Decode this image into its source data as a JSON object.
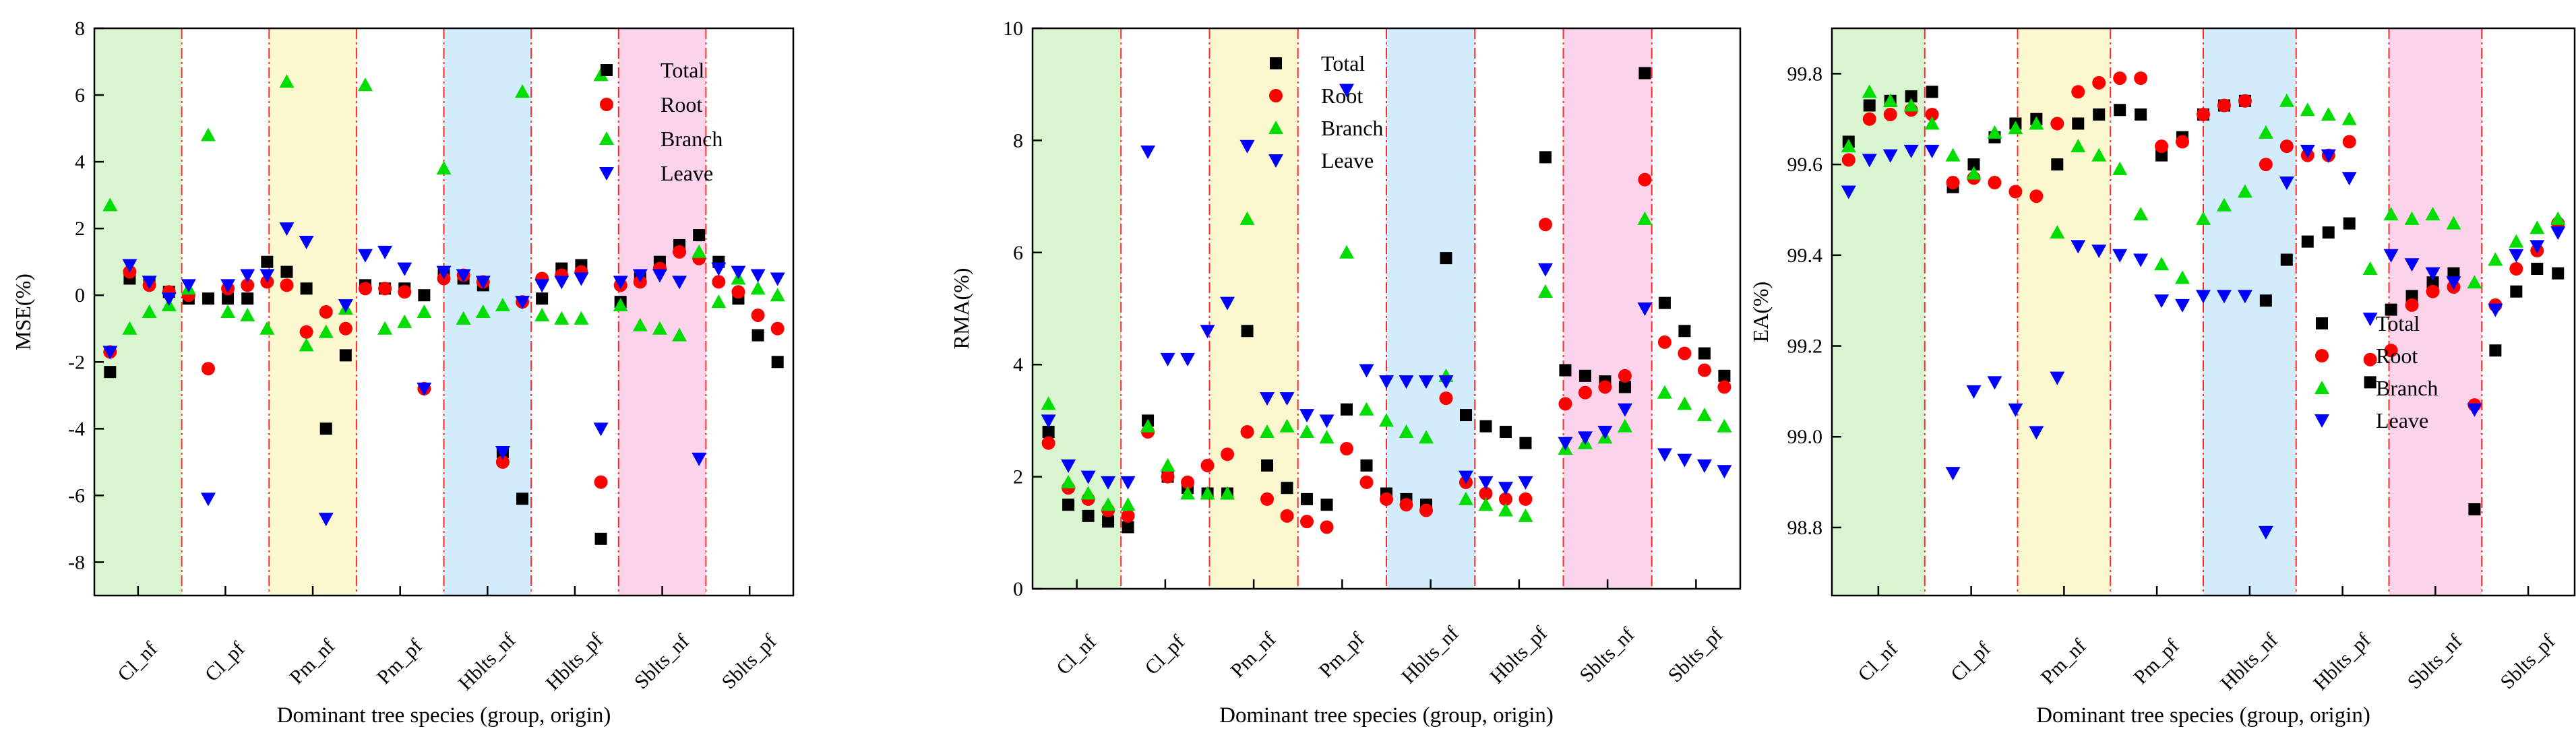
{
  "figure": {
    "categories": [
      "Cl_nf",
      "Cl_pf",
      "Pm_nf",
      "Pm_pf",
      "Hblts_nf",
      "Hblts_pf",
      "Sblts_nf",
      "Sblts_pf"
    ],
    "shaded_groups": [
      {
        "index": 0,
        "color": "#d8f5d0"
      },
      {
        "index": 2,
        "color": "#fbf7cf"
      },
      {
        "index": 4,
        "color": "#d3ecfb"
      },
      {
        "index": 6,
        "color": "#fbd3ea"
      }
    ],
    "series_style": [
      {
        "name": "Total",
        "marker": "square",
        "color": "#000000"
      },
      {
        "name": "Root",
        "marker": "circle",
        "color": "#ff0000"
      },
      {
        "name": "Branch",
        "marker": "triangle-up",
        "color": "#00dd00"
      },
      {
        "name": "Leave",
        "marker": "triangle-down",
        "color": "#0000ff"
      }
    ]
  },
  "chart_data": [
    {
      "type": "scatter",
      "ylabel": "MSE(%)",
      "xlabel": "Dominant tree species (group, origin)",
      "ylim": [
        -9,
        8
      ],
      "yticks": [
        -8,
        -6,
        -4,
        -2,
        0,
        2,
        4,
        6,
        8
      ],
      "ytick_labels": [
        "-8",
        "-6",
        "-4",
        "-2",
        "0",
        "2",
        "4",
        "6",
        "8"
      ],
      "legend_position": "top-right",
      "series": [
        {
          "name": "Total",
          "values": [
            -2.3,
            0.5,
            0.4,
            0.1,
            -0.1,
            -0.1,
            -0.1,
            -0.1,
            1.0,
            0.7,
            0.2,
            -4.0,
            -1.8,
            0.3,
            0.2,
            0.2,
            0.0,
            0.6,
            0.5,
            0.3,
            -4.7,
            -6.1,
            -0.1,
            0.8,
            0.9,
            -7.3,
            -0.2,
            0.5,
            1.0,
            1.5,
            1.8,
            1.0,
            -0.1,
            -1.2,
            -2.0
          ]
        },
        {
          "name": "Root",
          "values": [
            -1.7,
            0.7,
            0.3,
            0.1,
            0.0,
            -2.2,
            0.2,
            0.3,
            0.4,
            0.3,
            -1.1,
            -0.5,
            -1.0,
            0.2,
            0.2,
            0.1,
            -2.8,
            0.5,
            0.6,
            0.4,
            -5.0,
            -0.2,
            0.5,
            0.6,
            0.7,
            -5.6,
            0.3,
            0.4,
            0.8,
            1.3,
            1.1,
            0.4,
            0.1,
            -0.6,
            -1.0
          ]
        },
        {
          "name": "Branch",
          "values": [
            2.7,
            -1.0,
            -0.5,
            -0.3,
            0.2,
            4.8,
            -0.5,
            -0.6,
            -1.0,
            6.4,
            -1.5,
            -1.1,
            -0.4,
            6.3,
            -1.0,
            -0.8,
            -0.5,
            3.8,
            -0.7,
            -0.5,
            -0.3,
            6.1,
            -0.6,
            -0.7,
            -0.7,
            6.6,
            -0.3,
            -0.9,
            -1.0,
            -1.2,
            1.3,
            -0.2,
            0.5,
            0.2,
            0.0
          ]
        },
        {
          "name": "Leave",
          "values": [
            -1.7,
            0.9,
            0.4,
            -0.1,
            0.3,
            -6.1,
            0.3,
            0.6,
            0.6,
            2.0,
            1.6,
            -6.7,
            -0.3,
            1.2,
            1.3,
            0.8,
            -2.8,
            0.7,
            0.6,
            0.4,
            -4.7,
            -0.2,
            0.3,
            0.4,
            0.5,
            -4.0,
            0.4,
            0.6,
            0.6,
            0.4,
            -4.9,
            0.8,
            0.7,
            0.6,
            0.5
          ]
        }
      ]
    },
    {
      "type": "scatter",
      "ylabel": "RMA(%)",
      "xlabel": "Dominant tree species (group, origin)",
      "ylim": [
        0,
        10
      ],
      "yticks": [
        0,
        2,
        4,
        6,
        8,
        10
      ],
      "ytick_labels": [
        "0",
        "2",
        "4",
        "6",
        "8",
        "10"
      ],
      "legend_position": "top-right",
      "series": [
        {
          "name": "Total",
          "values": [
            2.8,
            1.5,
            1.3,
            1.2,
            1.1,
            3.0,
            2.0,
            1.8,
            1.7,
            1.7,
            4.6,
            2.2,
            1.8,
            1.6,
            1.5,
            3.2,
            2.2,
            1.7,
            1.6,
            1.5,
            5.9,
            3.1,
            2.9,
            2.8,
            2.6,
            7.7,
            3.9,
            3.8,
            3.7,
            3.6,
            9.2,
            5.1,
            4.6,
            4.2,
            3.8
          ]
        },
        {
          "name": "Root",
          "values": [
            2.6,
            1.8,
            1.6,
            1.4,
            1.3,
            2.8,
            2.0,
            1.9,
            2.2,
            2.4,
            2.8,
            1.6,
            1.3,
            1.2,
            1.1,
            2.5,
            1.9,
            1.6,
            1.5,
            1.4,
            3.4,
            1.9,
            1.7,
            1.6,
            1.6,
            6.5,
            3.3,
            3.5,
            3.6,
            3.8,
            7.3,
            4.4,
            4.2,
            3.9,
            3.6
          ]
        },
        {
          "name": "Branch",
          "values": [
            3.3,
            1.9,
            1.7,
            1.5,
            1.5,
            2.9,
            2.2,
            1.7,
            1.7,
            1.7,
            6.6,
            2.8,
            2.9,
            2.8,
            2.7,
            6.0,
            3.2,
            3.0,
            2.8,
            2.7,
            3.8,
            1.6,
            1.5,
            1.4,
            1.3,
            5.3,
            2.5,
            2.6,
            2.7,
            2.9,
            6.6,
            3.5,
            3.3,
            3.1,
            2.9
          ]
        },
        {
          "name": "Leave",
          "values": [
            3.0,
            2.2,
            2.0,
            1.9,
            1.9,
            7.8,
            4.1,
            4.1,
            4.6,
            5.1,
            7.9,
            3.4,
            3.4,
            3.1,
            3.0,
            8.9,
            3.9,
            3.7,
            3.7,
            3.7,
            3.7,
            2.0,
            1.9,
            1.8,
            1.9,
            5.7,
            2.6,
            2.7,
            2.8,
            3.2,
            5.0,
            2.4,
            2.3,
            2.2,
            2.1
          ]
        }
      ]
    },
    {
      "type": "scatter",
      "ylabel": "EA(%)",
      "xlabel": "Dominant tree species (group, origin)",
      "ylim": [
        98.65,
        99.9
      ],
      "yticks": [
        98.8,
        99.0,
        99.2,
        99.4,
        99.6,
        99.8
      ],
      "ytick_labels": [
        "98.8",
        "99.0",
        "99.2",
        "99.4",
        "99.6",
        "99.8"
      ],
      "legend_position": "center-right",
      "series": [
        {
          "name": "Total",
          "values": [
            99.65,
            99.73,
            99.74,
            99.75,
            99.76,
            99.55,
            99.6,
            99.66,
            99.69,
            99.7,
            99.6,
            99.69,
            99.71,
            99.72,
            99.71,
            99.62,
            99.66,
            99.71,
            99.73,
            99.74,
            99.3,
            99.39,
            99.43,
            99.45,
            99.47,
            99.12,
            99.28,
            99.31,
            99.34,
            99.36,
            98.84,
            99.19,
            99.32,
            99.37,
            99.36
          ]
        },
        {
          "name": "Root",
          "values": [
            99.61,
            99.7,
            99.71,
            99.72,
            99.71,
            99.56,
            99.57,
            99.56,
            99.54,
            99.53,
            99.69,
            99.76,
            99.78,
            99.79,
            99.79,
            99.64,
            99.65,
            99.71,
            99.73,
            99.74,
            99.6,
            99.64,
            99.62,
            99.62,
            99.65,
            99.17,
            99.19,
            99.29,
            99.32,
            99.33,
            99.07,
            99.29,
            99.37,
            99.41,
            99.47
          ]
        },
        {
          "name": "Branch",
          "values": [
            99.64,
            99.76,
            99.74,
            99.73,
            99.69,
            99.62,
            99.58,
            99.67,
            99.68,
            99.69,
            99.45,
            99.64,
            99.62,
            99.59,
            99.49,
            99.38,
            99.35,
            99.48,
            99.51,
            99.54,
            99.67,
            99.74,
            99.72,
            99.71,
            99.7,
            99.37,
            99.49,
            99.48,
            99.49,
            99.47,
            99.34,
            99.39,
            99.43,
            99.46,
            99.48
          ]
        },
        {
          "name": "Leave",
          "values": [
            99.54,
            99.61,
            99.62,
            99.63,
            99.63,
            98.92,
            99.1,
            99.12,
            99.06,
            99.01,
            99.13,
            99.42,
            99.41,
            99.4,
            99.39,
            99.3,
            99.29,
            99.31,
            99.31,
            99.31,
            98.79,
            99.56,
            99.63,
            99.62,
            99.57,
            99.26,
            99.4,
            99.38,
            99.36,
            99.34,
            99.06,
            99.28,
            99.4,
            99.42,
            99.45
          ]
        }
      ]
    }
  ]
}
